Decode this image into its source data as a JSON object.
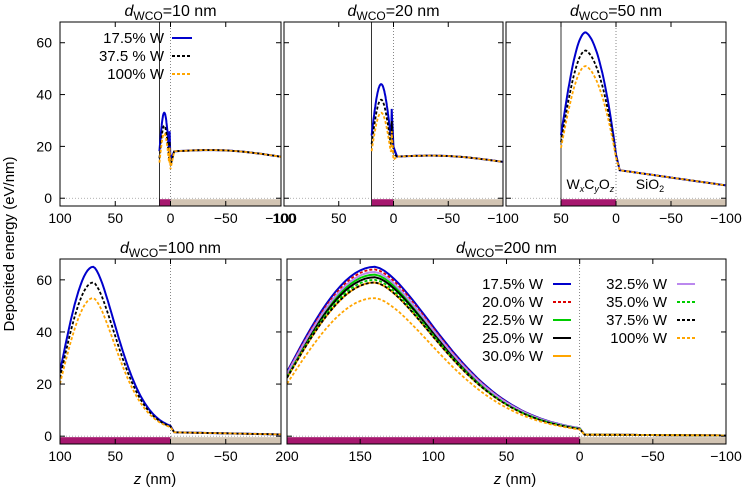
{
  "figure": {
    "ylabel": "Deposited energy (eV/nm)",
    "xlabel_var": "z",
    "xlabel_unit": "(nm)"
  },
  "layer_labels": {
    "wco": {
      "w": "W",
      "x": "x",
      "c": "C",
      "y": "y",
      "o": "O",
      "z": "z"
    },
    "sio2": {
      "si": "SiO",
      "two": "2"
    }
  },
  "chart_data": [
    {
      "id": "p10",
      "type": "line",
      "title": {
        "d": "d",
        "sub": "WCO",
        "rest": "=10 nm"
      },
      "thickness_nm": 10,
      "xlim": [
        100,
        -100
      ],
      "ylim": [
        -3,
        68
      ],
      "xticks": [
        100,
        50,
        0,
        -50,
        -100
      ],
      "xtick_labels": [
        "100",
        "50",
        "0",
        "−50",
        "−100"
      ],
      "yticks": [
        0,
        20,
        40,
        60
      ],
      "series": [
        {
          "name": "17.5% W",
          "color": "#0000cc",
          "dash": "",
          "peak": 33
        },
        {
          "name": "37.5 % W",
          "color": "#000000",
          "dash": "3,2",
          "peak": 28
        },
        {
          "name": "100% W",
          "color": "#ffa500",
          "dash": "3,2",
          "peak": 25
        }
      ],
      "substrate_level": 18
    },
    {
      "id": "p20",
      "type": "line",
      "title": {
        "d": "d",
        "sub": "WCO",
        "rest": "=20 nm"
      },
      "thickness_nm": 20,
      "xlim": [
        100,
        -100
      ],
      "ylim": [
        -3,
        68
      ],
      "xticks": [
        100,
        50,
        0,
        -50,
        -100
      ],
      "xtick_labels": [
        "100",
        "50",
        "0",
        "−50",
        "−100"
      ],
      "yticks": [
        0,
        20,
        40,
        60
      ],
      "series": [
        {
          "name": "17.5% W",
          "color": "#0000cc",
          "dash": "",
          "peak": 44
        },
        {
          "name": "37.5 % W",
          "color": "#000000",
          "dash": "3,2",
          "peak": 38
        },
        {
          "name": "100% W",
          "color": "#ffa500",
          "dash": "3,2",
          "peak": 33
        }
      ],
      "substrate_level": 16
    },
    {
      "id": "p50",
      "type": "line",
      "title": {
        "d": "d",
        "sub": "WCO",
        "rest": "=50 nm"
      },
      "thickness_nm": 50,
      "xlim": [
        100,
        -100
      ],
      "ylim": [
        -3,
        68
      ],
      "xticks": [
        50,
        0,
        -50,
        -100
      ],
      "xtick_labels": [
        "50",
        "0",
        "−50",
        "−100"
      ],
      "yticks": [
        0,
        20,
        40,
        60
      ],
      "series": [
        {
          "name": "17.5% W",
          "color": "#0000cc",
          "dash": "",
          "peak": 64
        },
        {
          "name": "37.5 % W",
          "color": "#000000",
          "dash": "3,2",
          "peak": 57
        },
        {
          "name": "100% W",
          "color": "#ffa500",
          "dash": "3,2",
          "peak": 51
        }
      ],
      "substrate_level": 11
    },
    {
      "id": "p100",
      "type": "line",
      "title": {
        "d": "d",
        "sub": "WCO",
        "rest": "=100 nm"
      },
      "thickness_nm": 100,
      "xlim": [
        100,
        -100
      ],
      "ylim": [
        -3,
        68
      ],
      "xticks": [
        100,
        50,
        0,
        -50
      ],
      "xtick_labels": [
        "100",
        "50",
        "0",
        "−50"
      ],
      "yticks": [
        0,
        20,
        40,
        60
      ],
      "series": [
        {
          "name": "17.5% W",
          "color": "#0000cc",
          "dash": "",
          "peak": 65
        },
        {
          "name": "37.5 % W",
          "color": "#000000",
          "dash": "3,2",
          "peak": 59
        },
        {
          "name": "100% W",
          "color": "#ffa500",
          "dash": "3,2",
          "peak": 53
        }
      ],
      "substrate_level": 1.5
    },
    {
      "id": "p200",
      "type": "line",
      "title": {
        "d": "d",
        "sub": "WCO",
        "rest": "=200 nm"
      },
      "thickness_nm": 200,
      "xlim": [
        200,
        -100
      ],
      "ylim": [
        -3,
        68
      ],
      "xticks": [
        200,
        150,
        100,
        50,
        0,
        -50,
        -100
      ],
      "xtick_labels": [
        "200",
        "150",
        "100",
        "50",
        "0",
        "−50",
        "−100"
      ],
      "yticks": [
        0,
        20,
        40,
        60
      ],
      "series": [
        {
          "name": "17.5% W",
          "color": "#0000cc",
          "dash": "",
          "peak": 65
        },
        {
          "name": "20.0% W",
          "color": "#dd0000",
          "dash": "3,2",
          "peak": 64
        },
        {
          "name": "22.5% W",
          "color": "#00cc00",
          "dash": "",
          "peak": 62
        },
        {
          "name": "25.0% W",
          "color": "#000000",
          "dash": "",
          "peak": 61
        },
        {
          "name": "30.0% W",
          "color": "#ffa500",
          "dash": "",
          "peak": 59
        },
        {
          "name": "32.5% W",
          "color": "#bb88ee",
          "dash": "",
          "peak": 63
        },
        {
          "name": "35.0% W",
          "color": "#00cc00",
          "dash": "3,2",
          "peak": 60
        },
        {
          "name": "37.5% W",
          "color": "#000000",
          "dash": "3,2",
          "peak": 59
        },
        {
          "name": "100% W",
          "color": "#ffa500",
          "dash": "3,2",
          "peak": 53
        }
      ],
      "substrate_level": 0.6
    }
  ]
}
